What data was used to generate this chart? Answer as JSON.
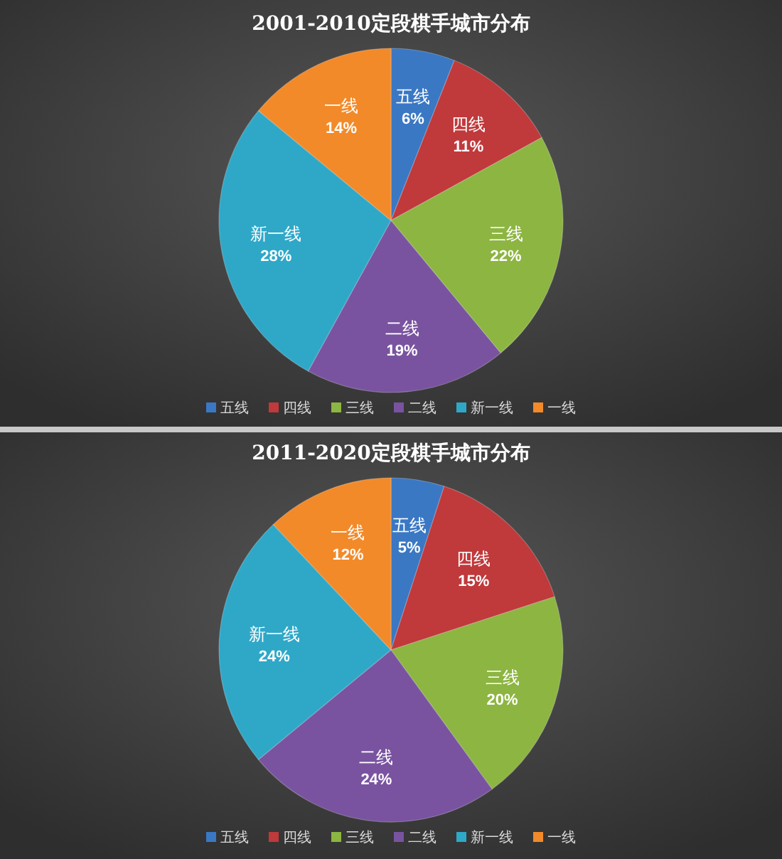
{
  "chart_data": [
    {
      "type": "pie",
      "title": "2001-2010定段棋手城市分布",
      "categories": [
        "五线",
        "四线",
        "三线",
        "二线",
        "新一线",
        "一线"
      ],
      "values": [
        6,
        11,
        22,
        19,
        28,
        14
      ],
      "value_labels": [
        "6%",
        "11%",
        "22%",
        "19%",
        "28%",
        "14%"
      ],
      "colors": [
        "#3a78c4",
        "#c0393b",
        "#8db542",
        "#7953a0",
        "#2fa8c8",
        "#f28a2a"
      ],
      "legend": "bottom"
    },
    {
      "type": "pie",
      "title": "2011-2020定段棋手城市分布",
      "categories": [
        "五线",
        "四线",
        "三线",
        "二线",
        "新一线",
        "一线"
      ],
      "values": [
        5,
        15,
        20,
        24,
        24,
        12
      ],
      "value_labels": [
        "5%",
        "15%",
        "20%",
        "24%",
        "24%",
        "12%"
      ],
      "colors": [
        "#3a78c4",
        "#c0393b",
        "#8db542",
        "#7953a0",
        "#2fa8c8",
        "#f28a2a"
      ],
      "legend": "bottom"
    }
  ]
}
